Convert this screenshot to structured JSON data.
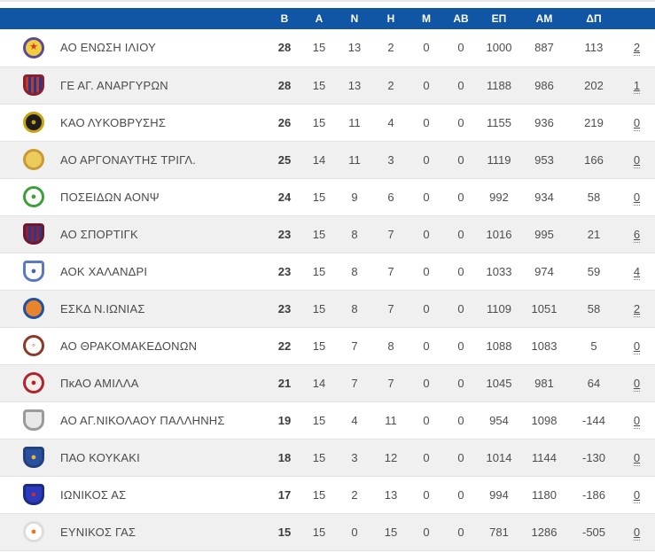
{
  "table": {
    "columns": [
      {
        "key": "points",
        "label": "Β"
      },
      {
        "key": "games",
        "label": "Α"
      },
      {
        "key": "wins",
        "label": "Ν"
      },
      {
        "key": "losses",
        "label": "Η"
      },
      {
        "key": "forfeits",
        "label": "Μ"
      },
      {
        "key": "withdrawals",
        "label": "ΑΒ"
      },
      {
        "key": "points-for",
        "label": "ΕΠ"
      },
      {
        "key": "points-against",
        "label": "ΑΜ"
      },
      {
        "key": "point-diff",
        "label": "ΔΠ"
      }
    ],
    "teams": [
      {
        "name": "ΑΟ ΕΝΩΣΗ ΙΛΙΟΥ",
        "stats": [
          "28",
          "15",
          "13",
          "2",
          "0",
          "0",
          "1000",
          "887",
          "113"
        ],
        "extra": "2",
        "logo": {
          "shape": "circle",
          "ring": "#5b4a9b",
          "bg": "#f2ce3c",
          "glyph": "★",
          "glyph_color": "#d03a3a"
        }
      },
      {
        "name": "ΓΕ ΑΓ. ΑΝΑΡΓΥΡΩΝ",
        "stats": [
          "28",
          "15",
          "13",
          "2",
          "0",
          "0",
          "1188",
          "986",
          "202"
        ],
        "extra": "1",
        "logo": {
          "shape": "shield",
          "ring": "#8c1f2f",
          "stripes": [
            "#c0392b",
            "#1d3c8f"
          ],
          "bg": "#c0392b"
        }
      },
      {
        "name": "ΚΑΟ ΛΥΚΟΒΡΥΣΗΣ",
        "stats": [
          "26",
          "15",
          "11",
          "4",
          "0",
          "0",
          "1155",
          "936",
          "219"
        ],
        "extra": "0",
        "logo": {
          "shape": "circle",
          "ring": "#c9a40e",
          "bg": "#1c1c1c",
          "glyph": "●",
          "glyph_color": "#c9a40e"
        }
      },
      {
        "name": "ΑΟ ΑΡΓΟΝΑΥΤΗΣ ΤΡΙΓΛ.",
        "stats": [
          "25",
          "14",
          "11",
          "3",
          "0",
          "0",
          "1119",
          "953",
          "166"
        ],
        "extra": "0",
        "logo": {
          "shape": "circle",
          "ring": "#c89a33",
          "bg": "#ebcb5a"
        }
      },
      {
        "name": "ΠΟΣΕΙΔΩΝ ΑΟΝΨ",
        "stats": [
          "24",
          "15",
          "9",
          "6",
          "0",
          "0",
          "992",
          "934",
          "58"
        ],
        "extra": "0",
        "logo": {
          "shape": "circle",
          "ring": "#3e9e3e",
          "bg": "#ffffff",
          "glyph": "●",
          "glyph_color": "#3e9e3e"
        }
      },
      {
        "name": "ΑΟ ΣΠΟΡΤΙΓΚ",
        "stats": [
          "23",
          "15",
          "8",
          "7",
          "0",
          "0",
          "1016",
          "995",
          "21"
        ],
        "extra": "6",
        "logo": {
          "shape": "shield",
          "ring": "#6e1830",
          "stripes": [
            "#8e2040",
            "#2a3b84"
          ],
          "bg": "#8e2040"
        }
      },
      {
        "name": "ΑΟΚ ΧΑΛΑΝΔΡΙ",
        "stats": [
          "23",
          "15",
          "8",
          "7",
          "0",
          "0",
          "1033",
          "974",
          "59"
        ],
        "extra": "4",
        "logo": {
          "shape": "shield",
          "ring": "#5a79c0",
          "bg": "#ffffff",
          "glyph": "●",
          "glyph_color": "#4668b0"
        }
      },
      {
        "name": "ΕΣΚΔ Ν.ΙΩΝΙΑΣ",
        "stats": [
          "23",
          "15",
          "8",
          "7",
          "0",
          "0",
          "1109",
          "1051",
          "58"
        ],
        "extra": "2",
        "logo": {
          "shape": "circle",
          "ring": "#2050a0",
          "bg": "#e8842c"
        }
      },
      {
        "name": "ΑΟ ΘΡΑΚΟΜΑΚΕΔΟΝΩΝ",
        "stats": [
          "22",
          "15",
          "7",
          "8",
          "0",
          "0",
          "1088",
          "1083",
          "5"
        ],
        "extra": "0",
        "logo": {
          "shape": "circle",
          "ring": "#8a3a28",
          "bg": "#ffffff",
          "glyph": "◦",
          "glyph_color": "#8a3a28"
        }
      },
      {
        "name": "ΠκΑΟ ΑΜΙΛΛΑ",
        "stats": [
          "21",
          "14",
          "7",
          "7",
          "0",
          "0",
          "1045",
          "981",
          "64"
        ],
        "extra": "0",
        "logo": {
          "shape": "circle",
          "ring": "#b02430",
          "bg": "#f5ede8",
          "glyph": "●",
          "glyph_color": "#b02430"
        }
      },
      {
        "name": "ΑΟ ΑΓ.ΝΙΚΟΛΑΟΥ ΠΑΛΛΗΝΗΣ",
        "stats": [
          "19",
          "15",
          "4",
          "11",
          "0",
          "0",
          "954",
          "1098",
          "-144"
        ],
        "extra": "0",
        "logo": {
          "shape": "shield",
          "ring": "#9a9a9a",
          "bg": "#e8e8e8"
        }
      },
      {
        "name": "ΠΑΟ ΚΟΥΚΑΚΙ",
        "stats": [
          "18",
          "15",
          "3",
          "12",
          "0",
          "0",
          "1014",
          "1144",
          "-130"
        ],
        "extra": "0",
        "logo": {
          "shape": "shield",
          "ring": "#24407c",
          "bg": "#2a50a0",
          "glyph": "●",
          "glyph_color": "#e8b83c"
        }
      },
      {
        "name": "ΙΩΝΙΚΟΣ ΑΣ",
        "stats": [
          "17",
          "15",
          "2",
          "13",
          "0",
          "0",
          "994",
          "1180",
          "-186"
        ],
        "extra": "0",
        "logo": {
          "shape": "shield",
          "ring": "#1c2c80",
          "bg": "#2b3bc0",
          "glyph": "●",
          "glyph_color": "#c03030"
        }
      },
      {
        "name": "ΕΥΝΙΚΟΣ ΓΑΣ",
        "stats": [
          "15",
          "15",
          "0",
          "15",
          "0",
          "0",
          "781",
          "1286",
          "-505"
        ],
        "extra": "0",
        "logo": {
          "shape": "circle",
          "ring": "#dddddd",
          "bg": "#ffffff",
          "glyph": "●",
          "glyph_color": "#e07820"
        }
      }
    ]
  },
  "colors": {
    "header_bg": "#1156a5",
    "header_text": "#ffffff",
    "row_alt_bg": "#f0f0f0",
    "body_text": "#4d4d4d"
  }
}
